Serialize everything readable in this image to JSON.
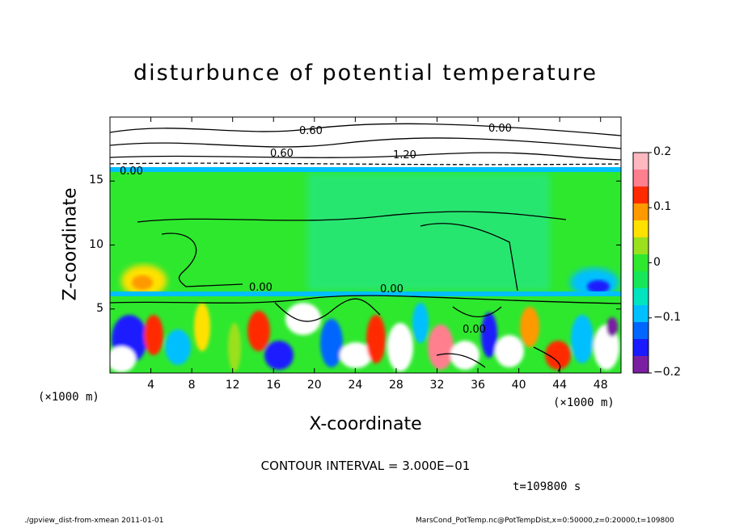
{
  "chart_data": {
    "type": "heatmap",
    "title": "disturbunce of potential temperature",
    "xlabel": "X-coordinate",
    "ylabel": "Z-coordinate",
    "x_unit_left": "(×1000 m)",
    "x_unit_right": "(×1000 m)",
    "xlim": [
      0,
      50
    ],
    "ylim": [
      0,
      20
    ],
    "x_ticks": [
      "4",
      "8",
      "12",
      "16",
      "20",
      "24",
      "28",
      "32",
      "36",
      "40",
      "44",
      "48"
    ],
    "y_ticks": [
      "5",
      "10",
      "15"
    ],
    "colorbar": {
      "min": -0.2,
      "max": 0.2,
      "ticks": [
        "0.2",
        "0.1",
        "0",
        "−0.1",
        "−0.2"
      ],
      "colors": [
        "#7b1fa2",
        "#1a1aff",
        "#0066ff",
        "#00bfff",
        "#00e5c0",
        "#18e65a",
        "#2ee82e",
        "#9be01c",
        "#ffe100",
        "#ff9900",
        "#ff2a00",
        "#ff7f8f",
        "#ffb8c0"
      ]
    },
    "contour_labels": [
      "0.00",
      "0.60",
      "1.20",
      "0.60",
      "0.00",
      "0.00",
      "0.00",
      "0.00"
    ],
    "contour_interval": "CONTOUR INTERVAL = 3.000E−01",
    "time": "t=109800  s"
  },
  "footer": {
    "left": "./gpview_dist-from-xmean   2011-01-01",
    "right": "MarsCond_PotTemp.nc@PotTempDist,x=0:50000,z=0:20000,t=109800"
  }
}
